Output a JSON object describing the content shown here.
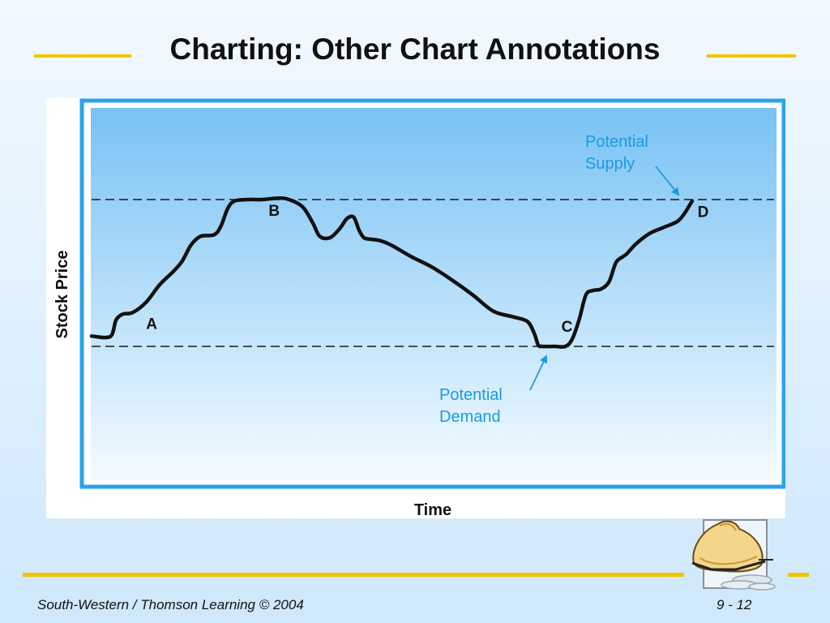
{
  "slide": {
    "title": "Charting: Other Chart Annotations",
    "footer_left": "South-Western / Thomson Learning © 2004",
    "footer_right": "9 - 12",
    "accent_color": "#f2c400",
    "clipart_icon": "money-bag-with-coins-icon"
  },
  "chart_data": {
    "type": "line",
    "title": "",
    "xlabel": "Time",
    "ylabel": "Stock Price",
    "grid": false,
    "plot_background": "#8cccf5",
    "frame_color": "#2aa3ea",
    "line_color": "#111111",
    "annotation_color": "#1a9be0",
    "levels": [
      {
        "name": "supply",
        "y": 100,
        "style": "dashed"
      },
      {
        "name": "demand",
        "y": 0,
        "style": "dashed"
      }
    ],
    "series": [
      {
        "x": [
          0,
          2,
          3,
          3.6,
          4.6,
          6,
          8,
          10,
          12,
          13.3,
          14.6,
          16,
          18,
          19,
          20,
          21,
          23,
          25,
          27.5,
          29,
          31,
          32.5,
          33.5,
          35,
          36.4,
          37.5,
          38.5,
          39.3,
          40,
          41,
          42.4,
          44,
          47,
          50,
          53,
          56,
          59,
          62,
          64,
          65,
          65.6,
          66.2,
          68,
          69.6,
          70.6,
          71.6,
          72.6,
          73.6,
          74.8,
          76,
          77,
          78,
          78.6,
          80,
          82,
          84,
          86,
          87,
          88.2
        ],
        "y": [
          7,
          6,
          8,
          18,
          22,
          23,
          30,
          42,
          51,
          58,
          69,
          75,
          76,
          82,
          94,
          99,
          100,
          100,
          101,
          100,
          95,
          84,
          75,
          74,
          80,
          87,
          88,
          79,
          74,
          73,
          72,
          69,
          61,
          54,
          45,
          35,
          24,
          20,
          17,
          9,
          1,
          0,
          0,
          0,
          5,
          18,
          35,
          38,
          39,
          44,
          57,
          61,
          63,
          70,
          77,
          81,
          85,
          90,
          99
        ]
      }
    ],
    "annotations": [
      {
        "id": "point-a",
        "label": "A",
        "x": 8,
        "y": 12
      },
      {
        "id": "point-b",
        "label": "B",
        "x": 26,
        "y": 89
      },
      {
        "id": "point-c",
        "label": "C",
        "x": 69,
        "y": 10
      },
      {
        "id": "point-d",
        "label": "D",
        "x": 89,
        "y": 88
      },
      {
        "id": "potential-supply",
        "label_lines": [
          "Potential",
          "Supply"
        ],
        "points_to": "supply-level"
      },
      {
        "id": "potential-demand",
        "label_lines": [
          "Potential",
          "Demand"
        ],
        "points_to": "demand-level"
      }
    ]
  }
}
